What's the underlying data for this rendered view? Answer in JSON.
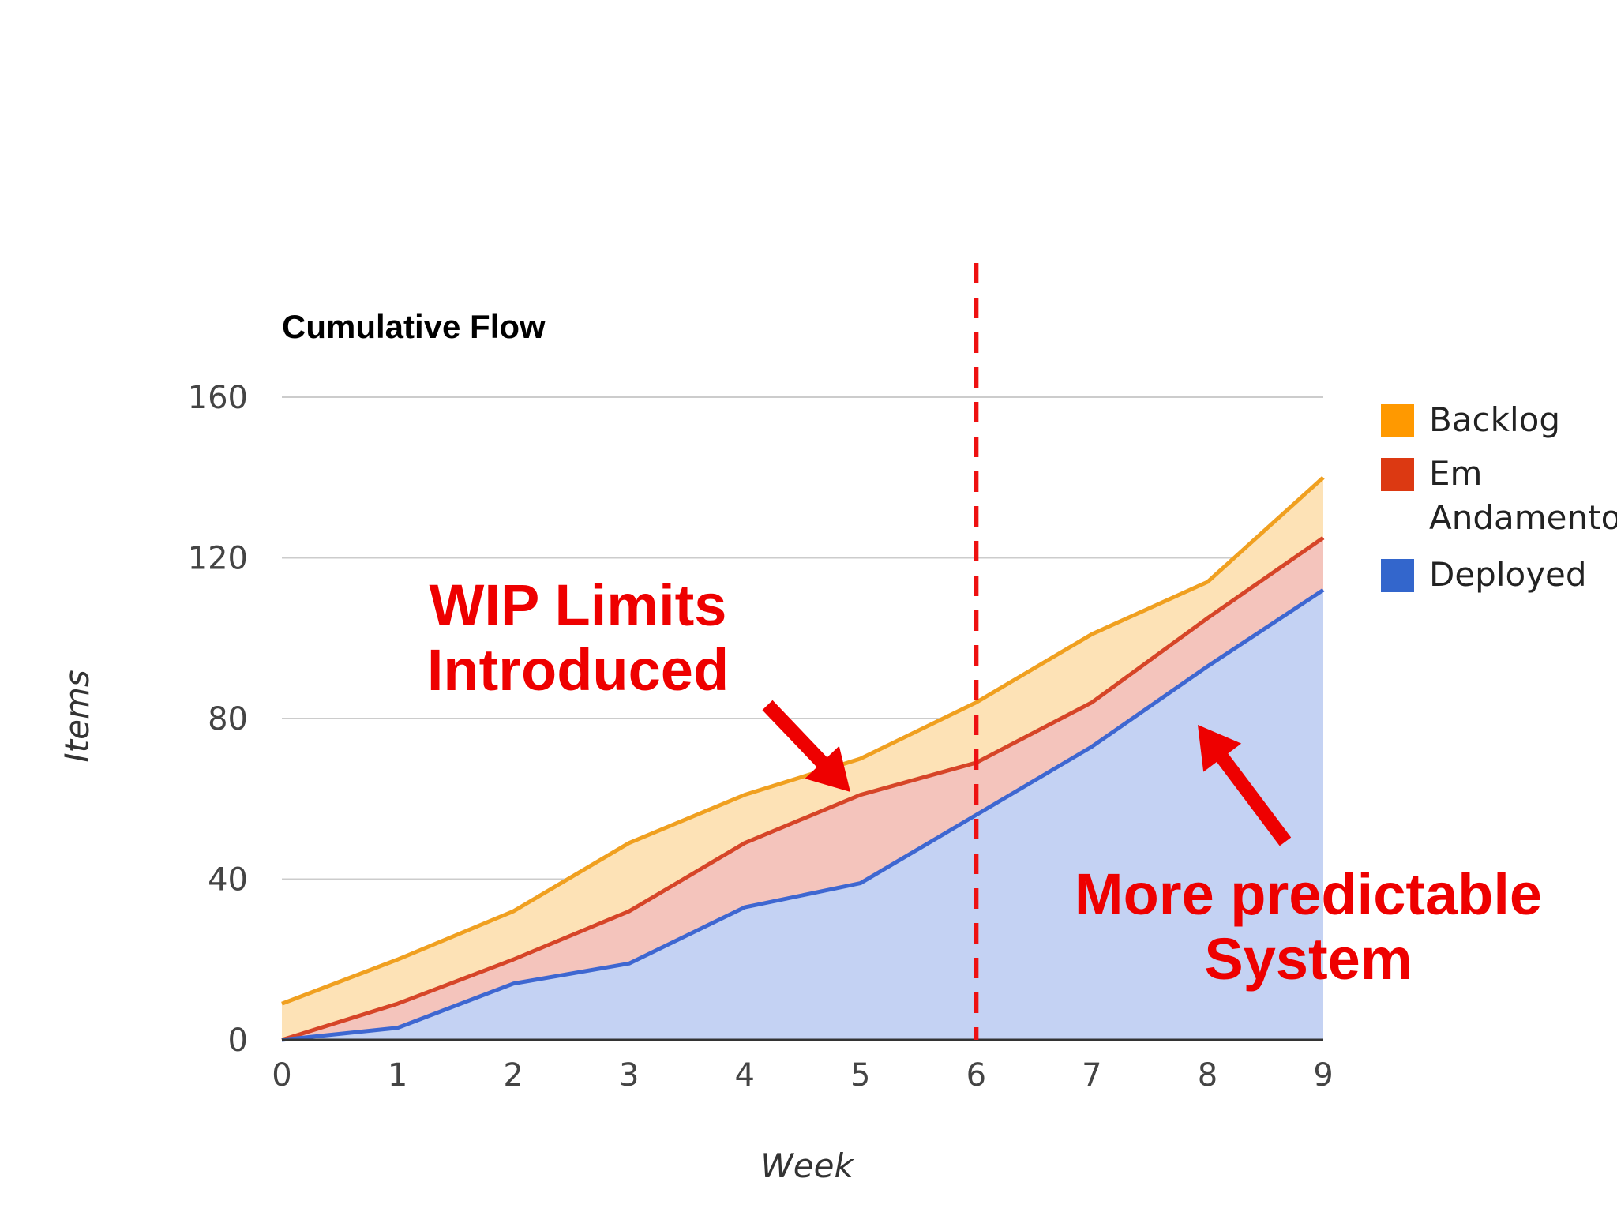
{
  "chart_data": {
    "type": "area",
    "stacked": true,
    "title": "Cumulative Flow",
    "xlabel": "Week",
    "ylabel": "Items",
    "x": [
      0,
      1,
      2,
      3,
      4,
      5,
      6,
      7,
      8,
      9
    ],
    "xlim": [
      0,
      9
    ],
    "ylim": [
      0,
      160
    ],
    "yticks": [
      0,
      40,
      80,
      120,
      160
    ],
    "grid": true,
    "legend_position": "right",
    "series": [
      {
        "name": "Backlog",
        "color": "#ff9900",
        "fill": "#fde2b6",
        "line": "#f0a020",
        "cumulative": [
          9,
          20,
          32,
          49,
          61,
          70,
          84,
          101,
          114,
          140
        ]
      },
      {
        "name": "Em Andamento",
        "color": "#dc3912",
        "fill": "#f4c4bc",
        "line": "#d64528",
        "cumulative": [
          0,
          9,
          20,
          32,
          49,
          61,
          69,
          84,
          105,
          125
        ]
      },
      {
        "name": "Deployed",
        "color": "#3366cc",
        "fill": "#c4d2f3",
        "line": "#3e67d1",
        "cumulative": [
          0,
          3,
          14,
          19,
          33,
          39,
          56,
          73,
          93,
          112
        ]
      }
    ],
    "marker_x": 6,
    "annotations": [
      {
        "lines": [
          "WIP Limits",
          "Introduced"
        ],
        "color": "#ee0000"
      },
      {
        "lines": [
          "More predictable",
          "System"
        ],
        "color": "#ee0000"
      }
    ]
  }
}
